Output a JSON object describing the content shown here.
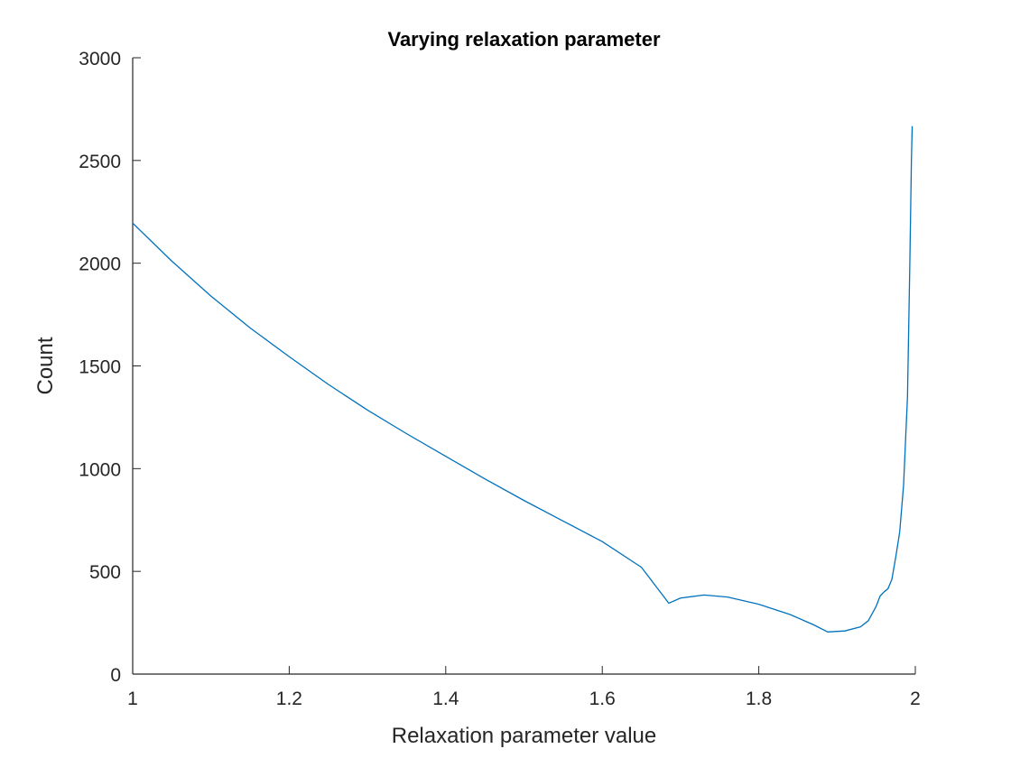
{
  "chart_data": {
    "type": "line",
    "title": "Varying relaxation parameter",
    "xlabel": "Relaxation parameter value",
    "ylabel": "Count",
    "xlim": [
      1,
      2
    ],
    "ylim": [
      0,
      3000
    ],
    "xticks": [
      1,
      1.2,
      1.4,
      1.6,
      1.8,
      2
    ],
    "xtick_labels": [
      "1",
      "1.2",
      "1.4",
      "1.6",
      "1.8",
      "2"
    ],
    "yticks": [
      0,
      500,
      1000,
      1500,
      2000,
      2500,
      3000
    ],
    "ytick_labels": [
      "0",
      "500",
      "1000",
      "1500",
      "2000",
      "2500",
      "3000"
    ],
    "grid": false,
    "series": [
      {
        "color": "#0072BD",
        "x": [
          1.0,
          1.05,
          1.1,
          1.15,
          1.2,
          1.25,
          1.3,
          1.35,
          1.4,
          1.45,
          1.5,
          1.55,
          1.6,
          1.65,
          1.685,
          1.7,
          1.73,
          1.76,
          1.8,
          1.84,
          1.87,
          1.888,
          1.91,
          1.93,
          1.94,
          1.95,
          1.955,
          1.96,
          1.965,
          1.97,
          1.975,
          1.98,
          1.985,
          1.99,
          1.993,
          1.995,
          1.996
        ],
        "y": [
          2195,
          2010,
          1840,
          1685,
          1545,
          1410,
          1285,
          1170,
          1060,
          950,
          845,
          745,
          645,
          520,
          345,
          370,
          385,
          375,
          340,
          290,
          240,
          205,
          210,
          230,
          260,
          330,
          380,
          400,
          415,
          460,
          570,
          690,
          920,
          1350,
          2000,
          2500,
          2665
        ]
      }
    ]
  }
}
